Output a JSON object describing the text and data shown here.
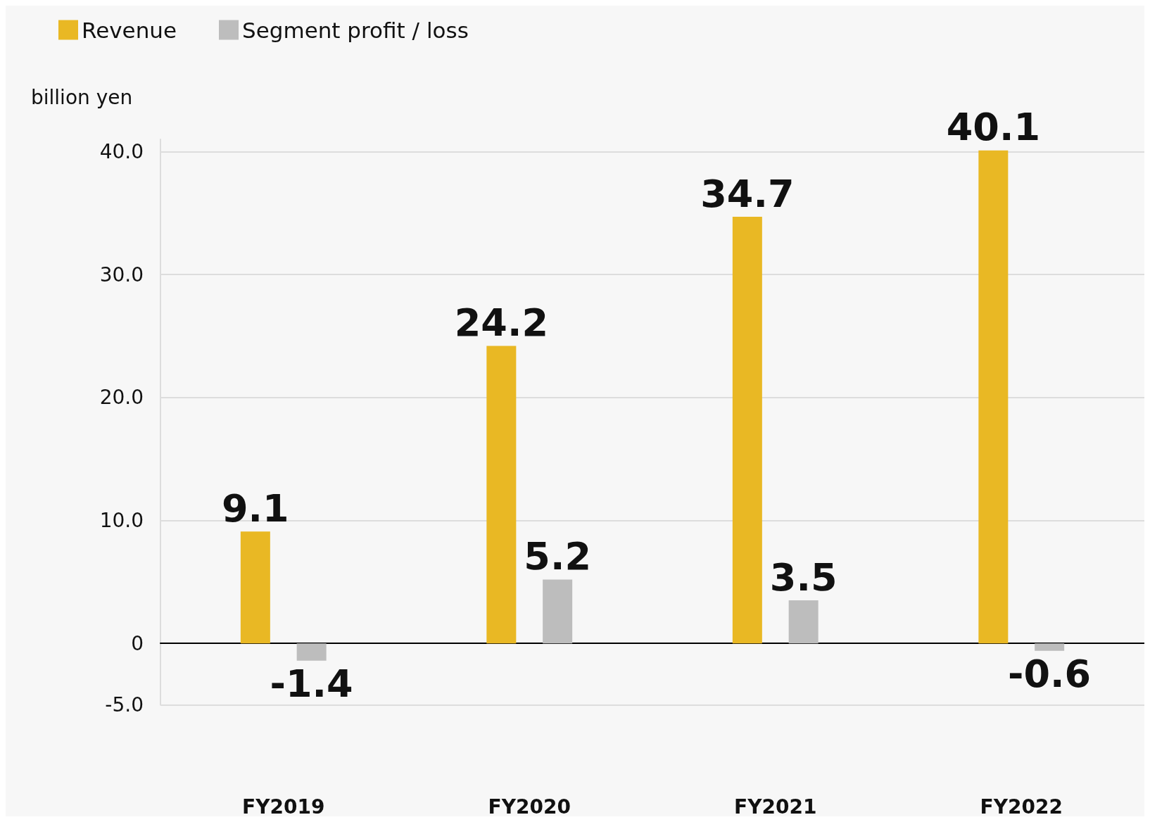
{
  "chart_data": {
    "type": "bar",
    "ylabel": "billion yen",
    "categories": [
      "FY2019",
      "FY2020",
      "FY2021",
      "FY2022"
    ],
    "series": [
      {
        "name": "Revenue",
        "color": "#e9b824",
        "values": [
          9.1,
          24.2,
          34.7,
          40.1
        ]
      },
      {
        "name": "Segment profit / loss",
        "color": "#bdbdbd",
        "values": [
          -1.4,
          5.2,
          3.5,
          -0.6
        ]
      }
    ],
    "ylim": [
      -5,
      41
    ],
    "yticks": [
      {
        "value": -5,
        "label": "-5.0"
      },
      0,
      {
        "value": 10,
        "label": "10.0"
      },
      {
        "value": 20,
        "label": "20.0"
      },
      {
        "value": 30,
        "label": "30.0"
      },
      {
        "value": 40,
        "label": "40.0"
      }
    ],
    "grid": "y",
    "legend": "top left",
    "data_labels": true
  }
}
